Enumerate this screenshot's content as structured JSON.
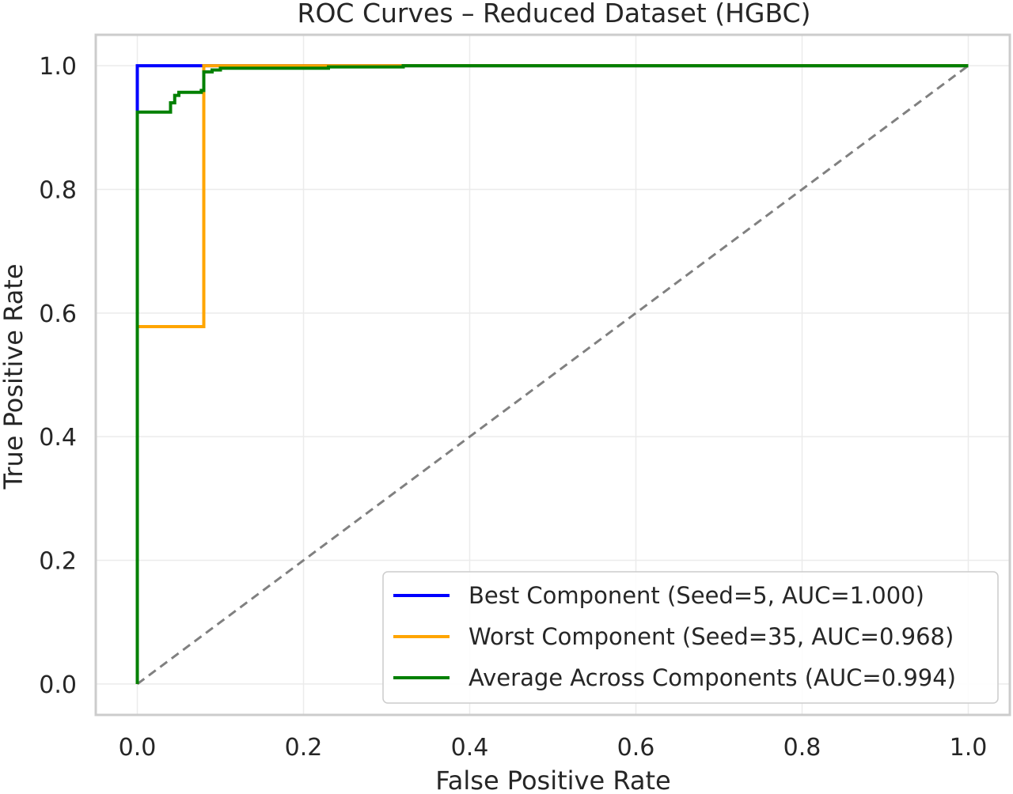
{
  "chart_data": {
    "type": "line",
    "title": "ROC Curves – Reduced Dataset (HGBC)",
    "xlabel": "False Positive Rate",
    "ylabel": "True Positive Rate",
    "xlim": [
      -0.05,
      1.05
    ],
    "ylim": [
      -0.05,
      1.05
    ],
    "xticks": [
      "0.0",
      "0.2",
      "0.4",
      "0.6",
      "0.8",
      "1.0"
    ],
    "yticks": [
      "0.0",
      "0.2",
      "0.4",
      "0.6",
      "0.8",
      "1.0"
    ],
    "grid": true,
    "legend_position": "lower-right",
    "series": [
      {
        "name": "Best Component (Seed=5, AUC=1.000)",
        "color": "#0000ff",
        "x": [
          0.0,
          0.0,
          0.0,
          1.0
        ],
        "y": [
          0.0,
          0.92,
          1.0,
          1.0
        ]
      },
      {
        "name": "Worst Component (Seed=35, AUC=0.968)",
        "color": "#ffa500",
        "x": [
          0.0,
          0.0,
          0.08,
          0.08,
          1.0
        ],
        "y": [
          0.0,
          0.578,
          0.578,
          1.0,
          1.0
        ]
      },
      {
        "name": "Average Across Components (AUC=0.994)",
        "color": "#008000",
        "x": [
          0.0,
          0.0,
          0.04,
          0.04,
          0.045,
          0.045,
          0.05,
          0.05,
          0.077,
          0.077,
          0.08,
          0.08,
          0.09,
          0.09,
          0.1,
          0.1,
          0.23,
          0.23,
          0.32,
          0.32,
          1.0
        ],
        "y": [
          0.0,
          0.925,
          0.925,
          0.94,
          0.94,
          0.952,
          0.952,
          0.957,
          0.957,
          0.96,
          0.96,
          0.99,
          0.99,
          0.993,
          0.993,
          0.996,
          0.996,
          0.998,
          0.998,
          1.0,
          1.0
        ]
      },
      {
        "name": "",
        "color": "#808080",
        "dashed": true,
        "x": [
          0.0,
          1.0
        ],
        "y": [
          0.0,
          1.0
        ]
      }
    ]
  }
}
